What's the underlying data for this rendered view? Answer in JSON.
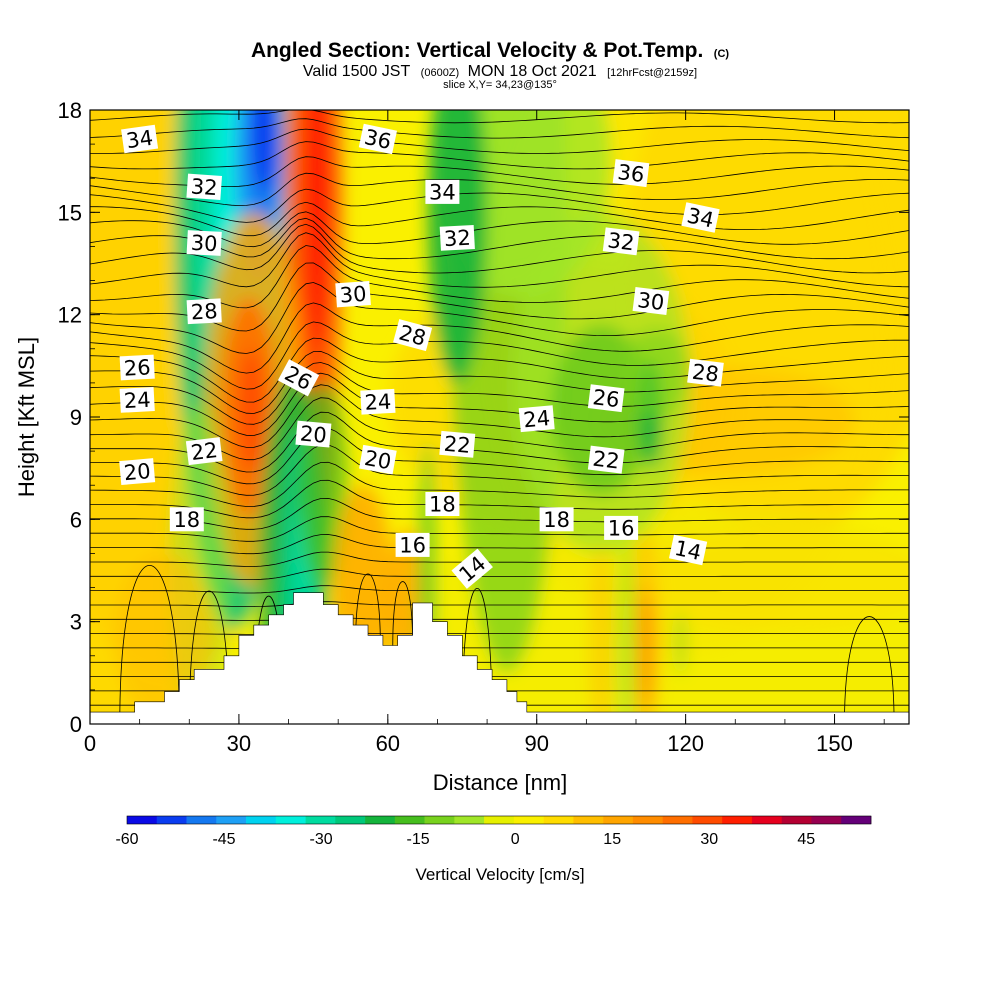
{
  "title": {
    "main": "Angled Section: Vertical Velocity & Pot.Temp.",
    "main_unit": "(C)",
    "valid_pre": "Valid 1500 JST",
    "valid_z": "(0600Z)",
    "valid_date": "MON 18 Oct 2021",
    "valid_fcst": "[12hrFcst@2159z]",
    "slice": "slice X,Y= 34,23@135°"
  },
  "chart_data": {
    "type": "heatmap",
    "xlabel": "Distance [nm]",
    "ylabel": "Height [Kft MSL]",
    "xlim": [
      0,
      165
    ],
    "ylim": [
      0,
      18
    ],
    "x_ticks": [
      0,
      30,
      60,
      90,
      120,
      150
    ],
    "y_ticks": [
      0,
      3,
      6,
      9,
      12,
      15,
      18
    ],
    "colorbar": {
      "label": "Vertical Velocity [cm/s]",
      "min": -60,
      "max": 55,
      "step": 5,
      "tick_values": [
        -60,
        -45,
        -30,
        -15,
        0,
        15,
        30,
        45
      ],
      "tick_labels": [
        "-60",
        "-45",
        "-30",
        "-15",
        "0",
        "15",
        "30",
        "45"
      ],
      "colors": [
        "#0a0ae6",
        "#0a3cf0",
        "#1478f0",
        "#1ea0f5",
        "#00d2f0",
        "#00f0dc",
        "#00dca0",
        "#00c87a",
        "#14b43c",
        "#46be1e",
        "#78d21e",
        "#a0e628",
        "#e6f000",
        "#faf000",
        "#ffdc00",
        "#ffbe00",
        "#ffa500",
        "#ff8c00",
        "#ff6e00",
        "#ff4b00",
        "#ff1e00",
        "#e6001e",
        "#b40032",
        "#960050",
        "#640078"
      ]
    },
    "theta_labels": [
      {
        "x": 10,
        "z": 17.15,
        "text": "34",
        "rot": -8
      },
      {
        "x": 23,
        "z": 15.75,
        "text": "32",
        "rot": 4
      },
      {
        "x": 23,
        "z": 14.1,
        "text": "30",
        "rot": 3
      },
      {
        "x": 23,
        "z": 12.1,
        "text": "28",
        "rot": -3
      },
      {
        "x": 9.5,
        "z": 10.45,
        "text": "26",
        "rot": -3
      },
      {
        "x": 9.5,
        "z": 9.5,
        "text": "24",
        "rot": -3
      },
      {
        "x": 23,
        "z": 8.0,
        "text": "22",
        "rot": -7
      },
      {
        "x": 9.5,
        "z": 7.4,
        "text": "20",
        "rot": -5
      },
      {
        "x": 19.5,
        "z": 6.0,
        "text": "18",
        "rot": 0
      },
      {
        "x": 58,
        "z": 17.15,
        "text": "36",
        "rot": 12
      },
      {
        "x": 71,
        "z": 15.6,
        "text": "34",
        "rot": 0
      },
      {
        "x": 74,
        "z": 14.25,
        "text": "32",
        "rot": -3
      },
      {
        "x": 53,
        "z": 12.6,
        "text": "30",
        "rot": -4
      },
      {
        "x": 65,
        "z": 11.4,
        "text": "28",
        "rot": 15
      },
      {
        "x": 42,
        "z": 10.15,
        "text": "26",
        "rot": 28
      },
      {
        "x": 58,
        "z": 9.45,
        "text": "24",
        "rot": -3
      },
      {
        "x": 45,
        "z": 8.5,
        "text": "20",
        "rot": 5
      },
      {
        "x": 58,
        "z": 7.75,
        "text": "20",
        "rot": 10
      },
      {
        "x": 74,
        "z": 8.2,
        "text": "22",
        "rot": 5
      },
      {
        "x": 71,
        "z": 6.45,
        "text": "18",
        "rot": 0
      },
      {
        "x": 65,
        "z": 5.25,
        "text": "16",
        "rot": 0
      },
      {
        "x": 77,
        "z": 4.55,
        "text": "14",
        "rot": -40
      },
      {
        "x": 109,
        "z": 16.15,
        "text": "36",
        "rot": 7
      },
      {
        "x": 123,
        "z": 14.85,
        "text": "34",
        "rot": 12
      },
      {
        "x": 107,
        "z": 14.15,
        "text": "32",
        "rot": 7
      },
      {
        "x": 113,
        "z": 12.4,
        "text": "30",
        "rot": 7
      },
      {
        "x": 124,
        "z": 10.3,
        "text": "28",
        "rot": 7
      },
      {
        "x": 104,
        "z": 9.55,
        "text": "26",
        "rot": 7
      },
      {
        "x": 90,
        "z": 8.95,
        "text": "24",
        "rot": -5
      },
      {
        "x": 104,
        "z": 7.75,
        "text": "22",
        "rot": 7
      },
      {
        "x": 94,
        "z": 6.0,
        "text": "18",
        "rot": 0
      },
      {
        "x": 107,
        "z": 5.75,
        "text": "16",
        "rot": 0
      },
      {
        "x": 120.5,
        "z": 5.1,
        "text": "14",
        "rot": 12
      }
    ]
  }
}
